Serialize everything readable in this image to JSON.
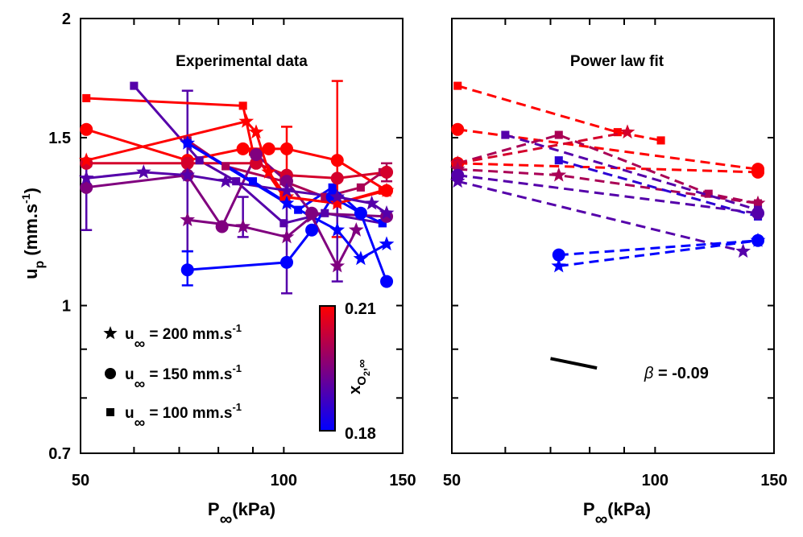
{
  "chart_data": [
    {
      "type": "scatter",
      "title": "Experimental data",
      "ylabel_main": "u",
      "ylabel_sub": "p",
      "ylabel_unit": "(mm.s",
      "ylabel_sup": "-1",
      "ylabel_close": ")",
      "xlabel_main": "P",
      "xlabel_sub": "∞",
      "xlabel_unit": "(kPa)",
      "x_scale": "log",
      "y_scale": "log",
      "xlim": [
        50,
        150
      ],
      "ylim": [
        0.7,
        2
      ],
      "x_ticks": [
        {
          "v": 50,
          "label": "50"
        },
        {
          "v": 100,
          "label": "100"
        },
        {
          "v": 150,
          "label": "150"
        }
      ],
      "y_ticks": [
        {
          "v": 0.7,
          "label": "0.7"
        },
        {
          "v": 1,
          "label": "1"
        },
        {
          "v": 1.5,
          "label": "1.5"
        },
        {
          "v": 2,
          "label": "2"
        }
      ],
      "legend": {
        "placement": "bottom-left",
        "entries": [
          {
            "marker": "star",
            "text_main": "u",
            "text_sub": "∞",
            "text_value": " = 200 mm.s",
            "text_sup": "-1"
          },
          {
            "marker": "circle",
            "text_main": "u",
            "text_sub": "∞",
            "text_value": " = 150 mm.s",
            "text_sup": "-1"
          },
          {
            "marker": "square",
            "text_main": "u",
            "text_sub": "∞",
            "text_value": " = 100 mm.s",
            "text_sup": "-1"
          }
        ]
      },
      "colorbar": {
        "label_main": "x",
        "label_sub": "O",
        "label_subsub": "2",
        "label_tail": ",∞",
        "range": [
          0.18,
          0.21
        ],
        "tick_labels": [
          "0.21",
          "0.18"
        ],
        "color_low": "#0000ff",
        "color_high": "#ff0000"
      },
      "series": [
        {
          "marker": "square",
          "c": 0.21,
          "x": [
            51,
            87,
            90,
            100,
            120,
            140
          ],
          "y": [
            1.65,
            1.62,
            1.45,
            1.3,
            1.28,
            1.32
          ]
        },
        {
          "marker": "square",
          "c": 0.19,
          "x": [
            60,
            75,
            85,
            100,
            115,
            140
          ],
          "y": [
            1.7,
            1.42,
            1.35,
            1.22,
            1.25,
            1.22
          ]
        },
        {
          "marker": "square",
          "c": 0.2,
          "x": [
            72,
            82,
            100,
            115,
            130,
            140
          ],
          "y": [
            1.49,
            1.4,
            1.35,
            1.3,
            1.33,
            1.38
          ]
        },
        {
          "marker": "square",
          "c": 0.18,
          "x": [
            72,
            90,
            105,
            118,
            130,
            140
          ],
          "y": [
            1.48,
            1.35,
            1.26,
            1.33,
            1.25,
            1.22
          ]
        },
        {
          "marker": "circle",
          "c": 0.21,
          "x": [
            51,
            72,
            87,
            95,
            101,
            120,
            142
          ],
          "y": [
            1.53,
            1.42,
            1.46,
            1.46,
            1.46,
            1.42,
            1.32
          ]
        },
        {
          "marker": "circle",
          "c": 0.205,
          "x": [
            51,
            72,
            91,
            101,
            120,
            142
          ],
          "y": [
            1.41,
            1.41,
            1.41,
            1.37,
            1.36,
            1.38
          ]
        },
        {
          "marker": "circle",
          "c": 0.195,
          "x": [
            51,
            72,
            81,
            91,
            101,
            110,
            142
          ],
          "y": [
            1.33,
            1.37,
            1.21,
            1.44,
            1.35,
            1.25,
            1.24
          ]
        },
        {
          "marker": "circle",
          "c": 0.18,
          "x": [
            72,
            101,
            110,
            118,
            130,
            142
          ],
          "y": [
            1.09,
            1.11,
            1.2,
            1.3,
            1.25,
            1.06
          ]
        },
        {
          "marker": "star",
          "c": 0.21,
          "x": [
            51,
            88,
            91,
            95,
            101,
            120,
            142
          ],
          "y": [
            1.42,
            1.56,
            1.52,
            1.38,
            1.3,
            1.28,
            1.32
          ]
        },
        {
          "marker": "star",
          "c": 0.19,
          "x": [
            51,
            62,
            72,
            82,
            101,
            120,
            135,
            142
          ],
          "y": [
            1.36,
            1.38,
            1.37,
            1.35,
            1.32,
            1.3,
            1.28,
            1.25
          ]
        },
        {
          "marker": "star",
          "c": 0.195,
          "x": [
            72,
            87,
            101,
            110,
            120,
            128
          ],
          "y": [
            1.23,
            1.21,
            1.18,
            1.24,
            1.1,
            1.2
          ]
        },
        {
          "marker": "star",
          "c": 0.18,
          "x": [
            72,
            101,
            120,
            130,
            142
          ],
          "y": [
            1.48,
            1.28,
            1.2,
            1.12,
            1.16
          ]
        }
      ],
      "errorbars": [
        {
          "x": 72,
          "y": 1.48,
          "lo": 1.14,
          "hi": 1.68,
          "c": 0.19
        },
        {
          "x": 72,
          "y": 1.09,
          "lo": 1.05,
          "hi": 1.14,
          "c": 0.18
        },
        {
          "x": 51,
          "y": 1.33,
          "lo": 1.2,
          "hi": 1.4,
          "c": 0.19
        },
        {
          "x": 87,
          "y": 1.21,
          "lo": 1.18,
          "hi": 1.3,
          "c": 0.19
        },
        {
          "x": 101,
          "y": 1.46,
          "lo": 1.3,
          "hi": 1.54,
          "c": 0.21
        },
        {
          "x": 101,
          "y": 1.28,
          "lo": 1.03,
          "hi": 1.37,
          "c": 0.19
        },
        {
          "x": 120,
          "y": 1.42,
          "lo": 1.18,
          "hi": 1.72,
          "c": 0.21
        },
        {
          "x": 120,
          "y": 1.1,
          "lo": 1.06,
          "hi": 1.28,
          "c": 0.19
        },
        {
          "x": 142,
          "y": 1.38,
          "lo": 1.35,
          "hi": 1.41,
          "c": 0.2
        }
      ]
    },
    {
      "type": "line",
      "title": "Power law fit",
      "xlabel_main": "P",
      "xlabel_sub": "∞",
      "xlabel_unit": "(kPa)",
      "x_scale": "log",
      "y_scale": "log",
      "xlim": [
        50,
        150
      ],
      "ylim": [
        0.7,
        2
      ],
      "x_ticks": [
        {
          "v": 50,
          "label": "50"
        },
        {
          "v": 100,
          "label": "100"
        },
        {
          "v": 150,
          "label": "150"
        }
      ],
      "annotation": {
        "symbol": "β",
        "text": " = -0.09",
        "slope_line": {
          "x": [
            70,
            82
          ],
          "y": [
            0.88,
            0.86
          ]
        }
      },
      "series": [
        {
          "c": 0.21,
          "marker": "square",
          "x": [
            51,
            88,
            102
          ],
          "y": [
            1.7,
            1.52,
            1.49
          ]
        },
        {
          "c": 0.21,
          "marker": "circle",
          "x": [
            51,
            142
          ],
          "y": [
            1.53,
            1.39
          ]
        },
        {
          "c": 0.21,
          "marker": "circle",
          "x": [
            51,
            142
          ],
          "y": [
            1.41,
            1.38
          ]
        },
        {
          "c": 0.2,
          "marker": "square",
          "x": [
            51,
            72,
            120,
            142
          ],
          "y": [
            1.41,
            1.51,
            1.31,
            1.28
          ]
        },
        {
          "c": 0.205,
          "marker": "star",
          "x": [
            51,
            91
          ],
          "y": [
            1.41,
            1.52
          ]
        },
        {
          "c": 0.2,
          "marker": "star",
          "x": [
            51,
            72,
            142
          ],
          "y": [
            1.39,
            1.37,
            1.28
          ]
        },
        {
          "c": 0.19,
          "marker": "square",
          "x": [
            60,
            142
          ],
          "y": [
            1.51,
            1.26
          ]
        },
        {
          "c": 0.185,
          "marker": "square",
          "x": [
            72,
            142
          ],
          "y": [
            1.42,
            1.24
          ]
        },
        {
          "c": 0.19,
          "marker": "circle",
          "x": [
            51,
            142
          ],
          "y": [
            1.37,
            1.25
          ]
        },
        {
          "c": 0.19,
          "marker": "star",
          "x": [
            51,
            135
          ],
          "y": [
            1.35,
            1.14
          ]
        },
        {
          "c": 0.18,
          "marker": "circle",
          "x": [
            72,
            142
          ],
          "y": [
            1.13,
            1.17
          ]
        },
        {
          "c": 0.18,
          "marker": "star",
          "x": [
            72,
            142
          ],
          "y": [
            1.1,
            1.17
          ]
        }
      ]
    }
  ]
}
